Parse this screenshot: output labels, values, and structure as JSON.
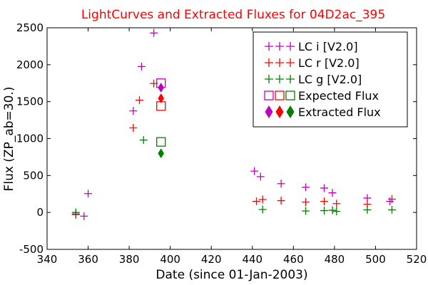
{
  "chart_data": {
    "type": "scatter",
    "title": "LightCurves and Extracted Fluxes for 04D2ac_395",
    "xlabel": "Date (since 01-Jan-2003)",
    "ylabel": "Flux (ZP_ab=30.)",
    "xlim": [
      340,
      520
    ],
    "ylim": [
      -500,
      2500
    ],
    "xticks": [
      340,
      360,
      380,
      400,
      420,
      440,
      460,
      480,
      500,
      520
    ],
    "yticks": [
      -500,
      0,
      500,
      1000,
      1500,
      2000,
      2500
    ],
    "grid": false,
    "legend_position": "top-right",
    "series": [
      {
        "name": "LC i [V2.0]",
        "marker": "plus",
        "color": "#bf00bf",
        "x": [
          354,
          358,
          360,
          382,
          386,
          392,
          441,
          444,
          454,
          466,
          475,
          479,
          496,
          507
        ],
        "y": [
          -20,
          -50,
          255,
          1375,
          1975,
          2430,
          560,
          485,
          390,
          340,
          330,
          265,
          195,
          150
        ]
      },
      {
        "name": "LC r [V2.0]",
        "marker": "plus",
        "color": "#ff0000",
        "x": [
          354,
          382,
          385,
          392,
          442,
          445,
          454,
          466,
          475,
          481,
          496,
          508
        ],
        "y": [
          -30,
          1145,
          1520,
          1745,
          150,
          175,
          160,
          140,
          150,
          120,
          110,
          180
        ]
      },
      {
        "name": "LC g [V2.0]",
        "marker": "plus",
        "color": "#008000",
        "x": [
          354,
          387,
          445,
          466,
          475,
          479,
          481,
          496,
          508
        ],
        "y": [
          0,
          980,
          40,
          20,
          25,
          30,
          15,
          35,
          35
        ]
      },
      {
        "name": "Expected Flux",
        "marker": "square",
        "x": [
          395.5,
          395.5,
          395.5
        ],
        "y": [
          1750,
          1440,
          955
        ],
        "colors": [
          "#bf00bf",
          "#ff0000",
          "#008000"
        ]
      },
      {
        "name": "Extracted Flux",
        "marker": "diamond",
        "x": [
          395.5,
          395.5,
          395.5
        ],
        "y": [
          1690,
          1545,
          800
        ],
        "colors": [
          "#bf00bf",
          "#ff0000",
          "#008000"
        ]
      }
    ]
  }
}
